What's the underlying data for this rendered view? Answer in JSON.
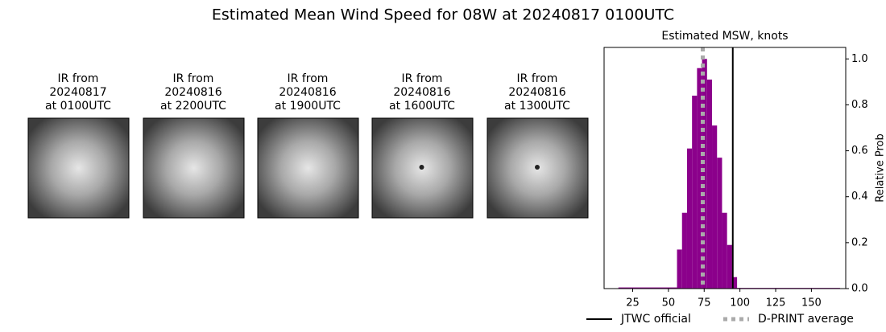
{
  "title": "Estimated Mean Wind Speed for 08W at 20240817 0100UTC",
  "panels": [
    {
      "lines": [
        "IR from",
        "20240817",
        "at 0100UTC"
      ]
    },
    {
      "lines": [
        "IR from",
        "20240816",
        "at 2200UTC"
      ]
    },
    {
      "lines": [
        "IR from",
        "20240816",
        "at 1900UTC"
      ]
    },
    {
      "lines": [
        "IR from",
        "20240816",
        "at 1600UTC"
      ]
    },
    {
      "lines": [
        "IR from",
        "20240816",
        "at 1300UTC"
      ]
    }
  ],
  "chart_data": {
    "type": "histogram",
    "title": "Estimated MSW, knots",
    "ylabel": "Relative Prob",
    "bins": [
      15,
      56,
      59.5,
      63,
      66.5,
      70,
      73.5,
      77,
      80.5,
      84,
      87.5,
      91,
      94.5,
      98,
      170
    ],
    "values": [
      0.005,
      0.17,
      0.33,
      0.61,
      0.84,
      0.96,
      1.0,
      0.91,
      0.71,
      0.57,
      0.33,
      0.19,
      0.05,
      0.003
    ],
    "color": "#8b008b",
    "xlim": [
      5,
      174
    ],
    "xticks": [
      25,
      50,
      75,
      100,
      125,
      150
    ],
    "ylim": [
      0,
      1.05
    ],
    "yticks": [
      {
        "value": 0,
        "label": "0.0"
      },
      0.2,
      0.4,
      0.6,
      0.8,
      {
        "value": 1,
        "label": "1.0"
      }
    ],
    "lines": [
      {
        "name": "JTWC official",
        "value": 95,
        "color": "#000000",
        "style": "solid"
      },
      {
        "name": "D-PRINT average",
        "value": 74,
        "color": "#aaaaaa",
        "style": "dotted"
      }
    ]
  }
}
